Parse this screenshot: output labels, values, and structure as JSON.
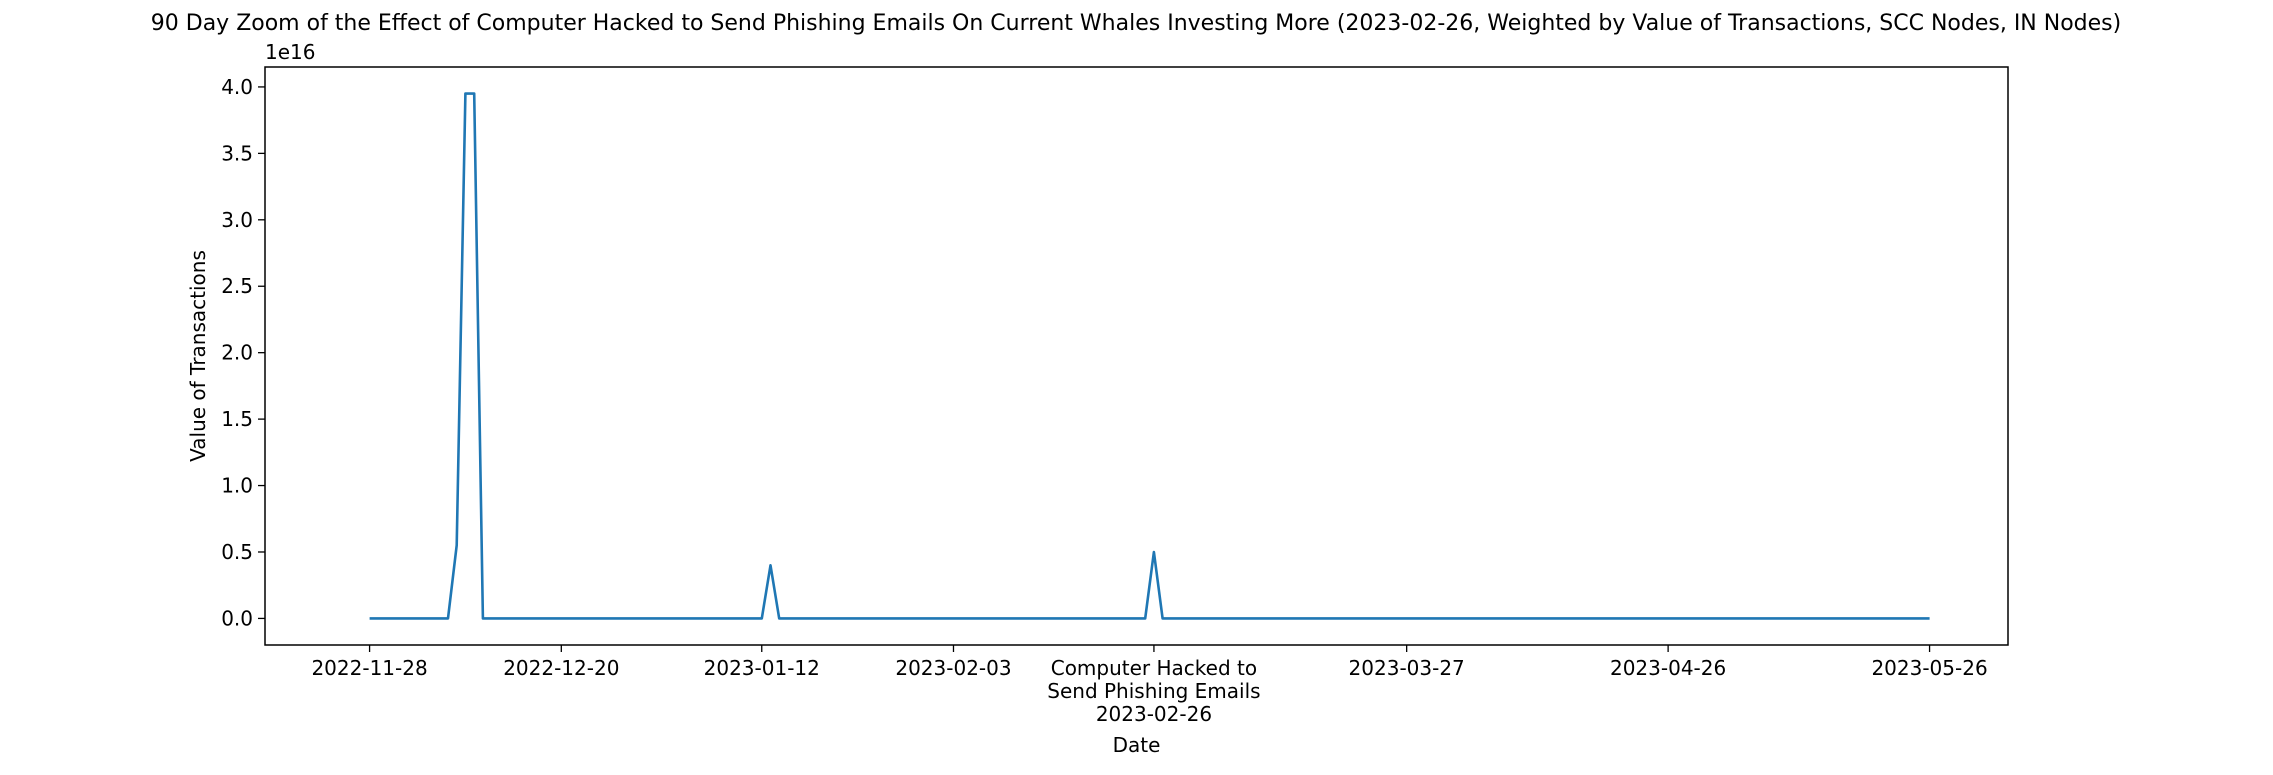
{
  "chart_data": {
    "type": "line",
    "title": "90 Day Zoom of the Effect of Computer Hacked to Send Phishing Emails On Current Whales Investing More (2023-02-26, Weighted by Value of Transactions, SCC Nodes, IN Nodes)",
    "xlabel": "Date",
    "ylabel": "Value of Transactions",
    "y_offset_label": "1e16",
    "x_range": [
      "2022-11-16",
      "2023-06-04"
    ],
    "ylim": [
      -0.2,
      4.15
    ],
    "y_scale": 1e+16,
    "grid": false,
    "x_ticks": [
      {
        "date": "2022-11-28",
        "label": "2022-11-28"
      },
      {
        "date": "2022-12-20",
        "label": "2022-12-20"
      },
      {
        "date": "2023-01-12",
        "label": "2023-01-12"
      },
      {
        "date": "2023-02-03",
        "label": "2023-02-03"
      },
      {
        "date": "2023-02-26",
        "label": "Computer Hacked to\nSend Phishing Emails\n2023-02-26"
      },
      {
        "date": "2023-03-27",
        "label": "2023-03-27"
      },
      {
        "date": "2023-04-26",
        "label": "2023-04-26"
      },
      {
        "date": "2023-05-26",
        "label": "2023-05-26"
      }
    ],
    "y_ticks": [
      {
        "value": 0.0,
        "label": "0.0"
      },
      {
        "value": 0.5,
        "label": "0.5"
      },
      {
        "value": 1.0,
        "label": "1.0"
      },
      {
        "value": 1.5,
        "label": "1.5"
      },
      {
        "value": 2.0,
        "label": "2.0"
      },
      {
        "value": 2.5,
        "label": "2.5"
      },
      {
        "value": 3.0,
        "label": "3.0"
      },
      {
        "value": 3.5,
        "label": "3.5"
      },
      {
        "value": 4.0,
        "label": "4.0"
      }
    ],
    "series": [
      {
        "color": "#1f77b4",
        "points": [
          [
            "2022-11-28",
            0
          ],
          [
            "2022-12-07",
            0
          ],
          [
            "2022-12-08",
            0.55
          ],
          [
            "2022-12-09",
            3.95
          ],
          [
            "2022-12-10",
            3.95
          ],
          [
            "2022-12-11",
            0
          ],
          [
            "2023-01-12",
            0
          ],
          [
            "2023-01-13",
            0.4
          ],
          [
            "2023-01-14",
            0
          ],
          [
            "2023-02-25",
            0
          ],
          [
            "2023-02-26",
            0.5
          ],
          [
            "2023-02-27",
            0
          ],
          [
            "2023-05-26",
            0
          ]
        ]
      }
    ]
  }
}
